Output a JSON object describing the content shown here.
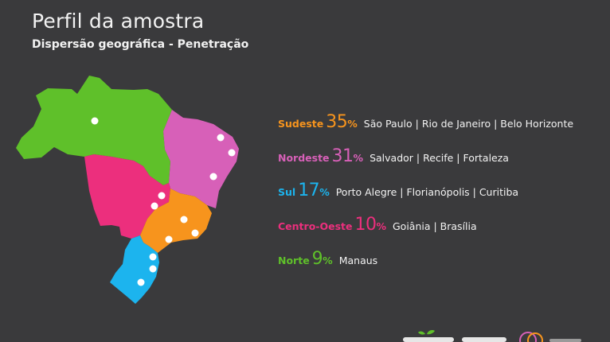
{
  "header": {
    "title": "Perfil da amostra",
    "subtitle": "Dispersão geográfica - Penetração"
  },
  "colors": {
    "background": "#3a3a3c",
    "text": "#f2f2f2",
    "sudeste": "#f7941d",
    "nordeste": "#d760b8",
    "sul": "#1cb4ee",
    "centro_oeste": "#ec2f7d",
    "norte": "#5fc02a"
  },
  "regions": [
    {
      "name": "Sudeste",
      "number": "35",
      "sign": "%",
      "cities": "São Paulo | Rio de Janeiro | Belo Horizonte",
      "color": "#f7941d"
    },
    {
      "name": "Nordeste",
      "number": "31",
      "sign": "%",
      "cities": "Salvador | Recife | Fortaleza",
      "color": "#d760b8"
    },
    {
      "name": "Sul",
      "number": "17",
      "sign": "%",
      "cities": "Porto Alegre | Florianópolis | Curitiba",
      "color": "#1cb4ee"
    },
    {
      "name": "Centro-Oeste",
      "number": "10",
      "sign": "%",
      "cities": "Goiânia | Brasília",
      "color": "#ec2f7d"
    },
    {
      "name": "Norte",
      "number": "9",
      "sign": "%",
      "cities": "Manaus",
      "color": "#5fc02a"
    }
  ],
  "map": {
    "icon": "brazil-map-icon",
    "city_marker_icon": "city-dot-icon"
  },
  "footer": {
    "logo_icon": "brand-logos-icon"
  }
}
